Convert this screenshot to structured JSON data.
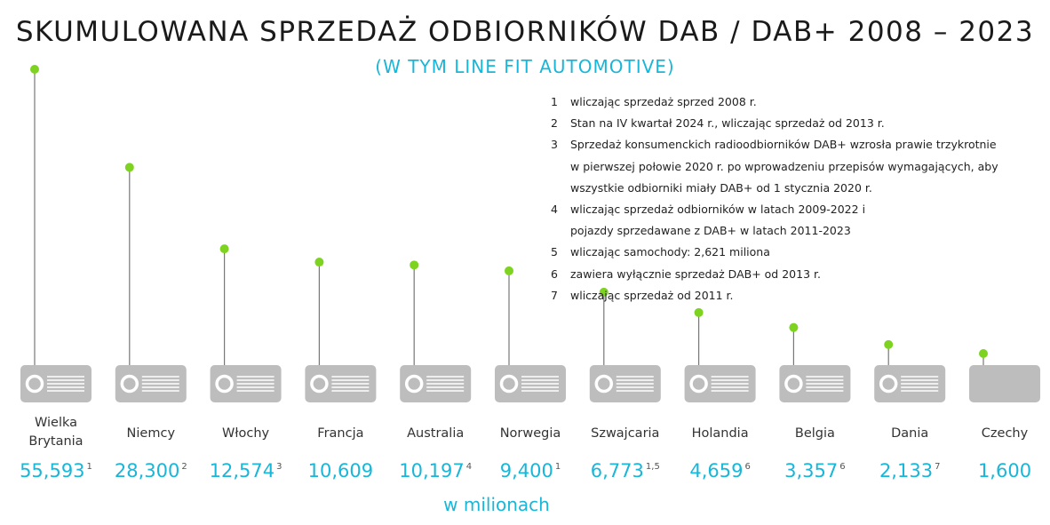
{
  "title": "SKUMULOWANA SPRZEDAŻ ODBIORNIKÓW DAB / DAB+ 2008 – 2023",
  "subtitle": "(W TYM LINE FIT AUTOMOTIVE)",
  "unit_label": "w milionach",
  "notes": [
    {
      "num": "1",
      "text": "wliczając sprzedaż sprzed 2008 r."
    },
    {
      "num": "2",
      "text": "Stan na IV kwartał 2024 r., wliczając sprzedaż od 2013 r."
    },
    {
      "num": "3",
      "text": "Sprzedaż konsumenckich radioodbiorników DAB+ wzrosła prawie trzykrotnie\nw pierwszej połowie 2020 r. po wprowadzeniu przepisów wymagających, aby\nwszystkie odbiorniki miały DAB+ od 1 stycznia 2020 r."
    },
    {
      "num": "4",
      "text": "wliczając sprzedaż odbiorników w latach 2009-2022 i\npojazdy sprzedawane z DAB+ w latach 2011-2023"
    },
    {
      "num": "5",
      "text": "wliczając samochody: 2,621 miliona"
    },
    {
      "num": "6",
      "text": "zawiera wyłącznie sprzedaż DAB+ od 2013 r."
    },
    {
      "num": "7",
      "text": "wliczając sprzedaż od 2011 r."
    }
  ],
  "colors": {
    "accent": "#18b6d8",
    "marker": "#7ed321",
    "radio": "#bdbdbd"
  },
  "chart_data": {
    "type": "bar",
    "categories": [
      "Wielka\nBrytania",
      "Niemcy",
      "Włochy",
      "Francja",
      "Australia",
      "Norwegia",
      "Szwajcaria",
      "Holandia",
      "Belgia",
      "Dania",
      "Czechy"
    ],
    "values": [
      55.593,
      28.3,
      12.574,
      10.609,
      10.197,
      9.4,
      6.773,
      4.659,
      3.357,
      2.133,
      1.6
    ],
    "value_labels": [
      "55,593",
      "28,300",
      "12,574",
      "10,609",
      "10,197",
      "9,400",
      "6,773",
      "4,659",
      "3,357",
      "2,133",
      "1,600"
    ],
    "footnotes": [
      "1",
      "2",
      "3",
      "",
      "4",
      "1",
      "1,5",
      "6",
      "6",
      "7",
      ""
    ],
    "xlabel": "",
    "ylabel": "w milionach"
  }
}
